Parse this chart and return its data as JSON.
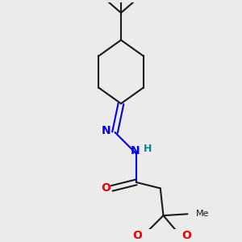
{
  "bg_color": "#ebebeb",
  "bond_color": "#1a1a1a",
  "nitrogen_color": "#0000ee",
  "oxygen_color": "#ee0000",
  "teal_color": "#008b8b",
  "linewidth": 1.5,
  "figsize": [
    3.0,
    3.0
  ],
  "dpi": 100,
  "xlim": [
    -2.5,
    2.5
  ],
  "ylim": [
    -4.0,
    3.5
  ]
}
